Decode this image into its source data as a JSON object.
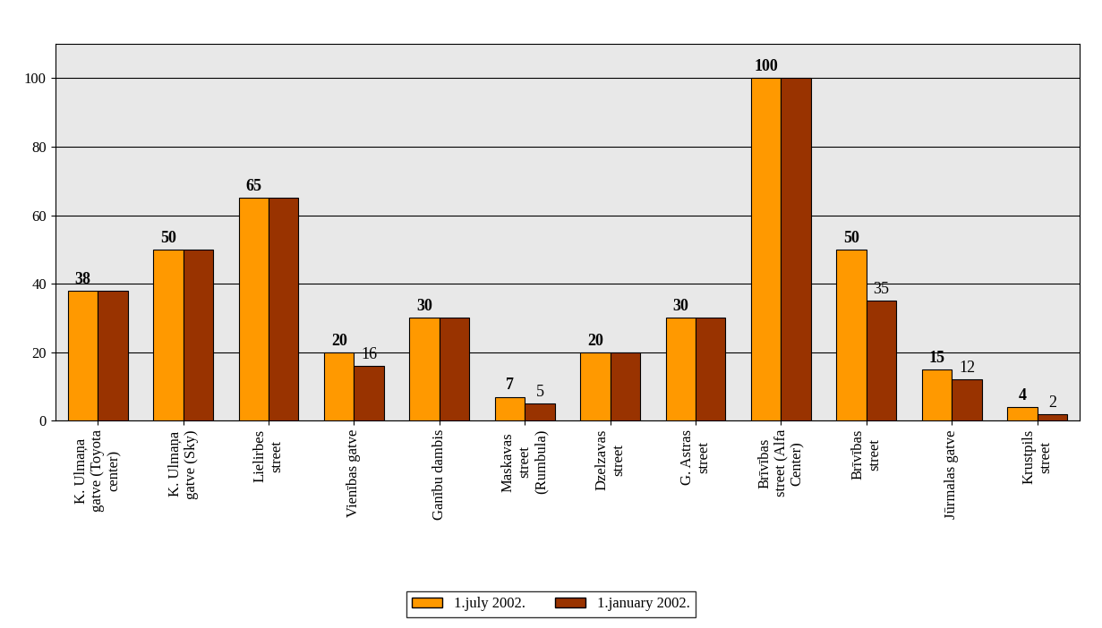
{
  "chart_data": {
    "type": "bar",
    "categories": [
      "K. Ulmaņa gatve (Toyota center)",
      "K. Ulmaņa gatve (Sky)",
      "Lielirbes street",
      "Vienības gatve",
      "Ganību dambis",
      "Maskavas street (Rumbula)",
      "Dzelzavas street",
      "G. Astras street",
      "Brīvības street (Alfa Center)",
      "Brīvības street",
      "Jūrmalas gatve",
      "Krustpils street"
    ],
    "series": [
      {
        "name": "1.july 2002.",
        "color": "#FF9900",
        "values": [
          38,
          50,
          65,
          20,
          30,
          7,
          20,
          30,
          100,
          50,
          15,
          4
        ]
      },
      {
        "name": "1.january 2002.",
        "color": "#993300",
        "values": [
          38,
          50,
          65,
          16,
          30,
          5,
          20,
          30,
          100,
          35,
          12,
          2
        ],
        "value_labels": [
          null,
          null,
          null,
          "16",
          null,
          "5",
          null,
          null,
          null,
          "35",
          "12",
          "2"
        ]
      }
    ],
    "ylim": [
      0,
      110
    ],
    "yticks": [
      0,
      20,
      40,
      60,
      80,
      100
    ],
    "grid": true,
    "legend": "lower center",
    "data_labels": true
  }
}
